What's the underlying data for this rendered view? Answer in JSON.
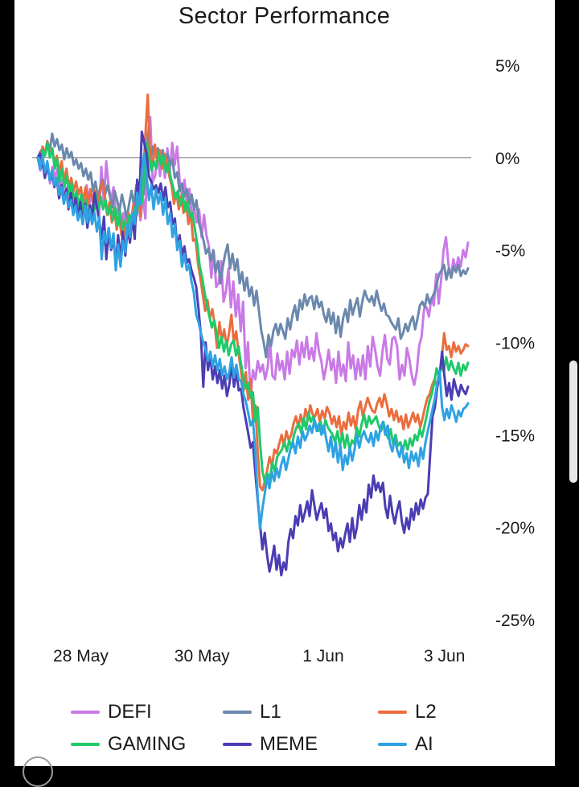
{
  "chart_data": {
    "type": "line",
    "title": "Sector Performance",
    "xlabel": "",
    "ylabel": "",
    "x_range": [
      0,
      181
    ],
    "ylim": [
      -25,
      5
    ],
    "y_ticks": [
      5,
      0,
      -5,
      -10,
      -15,
      -20,
      -25
    ],
    "y_tick_labels": [
      "5%",
      "0%",
      "-5%",
      "-10%",
      "-15%",
      "-20%",
      "-25%"
    ],
    "x_ticks": [
      {
        "label": "28 May",
        "x": 12
      },
      {
        "label": "30 May",
        "x": 63
      },
      {
        "label": "1 Jun",
        "x": 114
      },
      {
        "label": "3 Jun",
        "x": 165
      }
    ],
    "baseline": 0,
    "legend_position": "bottom",
    "series": [
      {
        "name": "DEFI",
        "color": "#c97ae6",
        "values": [
          0,
          -0.7,
          -0.2,
          -0.9,
          -0.3,
          -1.4,
          -0.5,
          -1.1,
          -0.6,
          -1.8,
          -1.2,
          -2.3,
          -1.6,
          -2.6,
          -1.9,
          -2.8,
          -2.2,
          -3.0,
          -2.4,
          -3.1,
          -1.5,
          -2.6,
          -1.9,
          -2.9,
          -2.2,
          -3.3,
          -0.5,
          -2.4,
          -0.2,
          -1.6,
          -2.3,
          -1.6,
          -3.2,
          -2.7,
          -3.8,
          -3.0,
          -3.9,
          -3.1,
          -4.1,
          -2.7,
          -3.5,
          -2.0,
          -3.4,
          -2.1,
          -3.3,
          1.3,
          2.2,
          -1.3,
          -1.0,
          0.3,
          -1.0,
          0.4,
          -1.1,
          0.5,
          -0.8,
          0.8,
          -0.4,
          0.6,
          -1.2,
          -2.1,
          -1.2,
          -2.5,
          -1.7,
          -3.2,
          -2.7,
          -3.5,
          -2.8,
          -4.3,
          -3.1,
          -4.2,
          -4.8,
          -6.5,
          -5.1,
          -7.0,
          -6.8,
          -5.6,
          -7.8,
          -7.2,
          -6.0,
          -8.1,
          -6.7,
          -8.6,
          -7.4,
          -9.4,
          -7.8,
          -11.4,
          -10.0,
          -13.0,
          -11.5,
          -12.0,
          -11.0,
          -11.6,
          -11.2,
          -12.0,
          -11.4,
          -10.0,
          -11.8,
          -12.0,
          -10.6,
          -11.5,
          -11.0,
          -12.0,
          -10.5,
          -11.7,
          -10.4,
          -10.8,
          -9.9,
          -11.2,
          -10.0,
          -10.8,
          -9.7,
          -10.9,
          -10.3,
          -11.0,
          -9.5,
          -10.5,
          -11.0,
          -12.0,
          -11.3,
          -10.4,
          -11.5,
          -10.9,
          -12.2,
          -10.5,
          -11.8,
          -11.2,
          -12.1,
          -10.0,
          -11.4,
          -10.7,
          -12.0,
          -10.9,
          -11.8,
          -10.7,
          -12.0,
          -10.2,
          -11.3,
          -9.7,
          -10.4,
          -11.3,
          -11.8,
          -10.5,
          -9.6,
          -10.9,
          -11.2,
          -9.8,
          -9.7,
          -10.2,
          -12.0,
          -11.2,
          -11.8,
          -10.3,
          -10.9,
          -11.8,
          -12.3,
          -11.6,
          -10.2,
          -9.7,
          -8.2,
          -8.1,
          -8.6,
          -7.6,
          -8.0,
          -6.3,
          -7.9,
          -6.6,
          -5.0,
          -4.3,
          -5.8,
          -6.5,
          -5.5,
          -6.1,
          -5.4,
          -5.9,
          -5.0,
          -5.4,
          -4.6
        ]
      },
      {
        "name": "L1",
        "color": "#6b88ad",
        "values": [
          0,
          0.3,
          0.5,
          0.2,
          0.8,
          0.4,
          1.3,
          0.6,
          1.0,
          0.4,
          0.7,
          -0.1,
          0.5,
          0.0,
          0.3,
          -0.4,
          -0.1,
          -0.6,
          -0.3,
          -1.0,
          -0.6,
          -1.2,
          -0.8,
          -1.8,
          -1.3,
          -2.2,
          -1.6,
          -1.2,
          -2.0,
          -1.5,
          -2.1,
          -2.7,
          -1.8,
          -2.3,
          -2.9,
          -2.0,
          -2.6,
          -3.3,
          -2.5,
          -1.8,
          -2.6,
          -1.5,
          -2.3,
          -1.2,
          -2.0,
          -0.4,
          1.3,
          0.1,
          0.6,
          0.2,
          0.5,
          -0.2,
          0.4,
          -0.3,
          0.2,
          -0.4,
          -0.1,
          -1.1,
          -0.8,
          -1.8,
          -1.4,
          -2.1,
          -1.7,
          -2.5,
          -2.0,
          -2.8,
          -2.3,
          -3.5,
          -4.0,
          -4.5,
          -5.2,
          -4.9,
          -5.6,
          -5.0,
          -6.2,
          -5.6,
          -6.8,
          -5.9,
          -5.2,
          -4.7,
          -6.0,
          -5.2,
          -6.1,
          -5.5,
          -6.8,
          -6.2,
          -7.2,
          -6.5,
          -7.5,
          -7.0,
          -8.0,
          -7.2,
          -8.3,
          -9.4,
          -10.0,
          -10.8,
          -9.6,
          -10.2,
          -9.4,
          -9.0,
          -9.6,
          -9.0,
          -9.4,
          -9.8,
          -8.7,
          -9.3,
          -8.5,
          -8.0,
          -8.8,
          -7.7,
          -8.2,
          -7.4,
          -8.0,
          -7.6,
          -7.5,
          -8.2,
          -7.5,
          -8.1,
          -7.8,
          -8.5,
          -8.9,
          -8.2,
          -9.0,
          -8.4,
          -9.5,
          -8.6,
          -9.7,
          -8.7,
          -8.2,
          -8.9,
          -7.7,
          -8.5,
          -8.0,
          -7.6,
          -8.6,
          -7.8,
          -7.2,
          -7.6,
          -7.8,
          -7.5,
          -8.0,
          -7.2,
          -7.8,
          -8.3,
          -7.9,
          -8.5,
          -8.6,
          -8.9,
          -9.1,
          -9.3,
          -8.7,
          -9.8,
          -9.5,
          -9.0,
          -9.4,
          -8.9,
          -8.6,
          -9.3,
          -8.7,
          -8.0,
          -7.8,
          -8.1,
          -7.4,
          -7.9,
          -7.6,
          -7.3,
          -6.8,
          -6.3,
          -6.1,
          -5.8,
          -6.6,
          -6.0,
          -6.5,
          -5.9,
          -6.2,
          -5.8,
          -6.4,
          -6.1,
          -6.3,
          -6.0
        ]
      },
      {
        "name": "L2",
        "color": "#eb6d3e",
        "values": [
          0,
          -0.3,
          0.6,
          0.2,
          0.9,
          0.3,
          0.5,
          -0.3,
          0.1,
          -0.8,
          -0.2,
          -1.3,
          -0.6,
          -1.6,
          -1.1,
          -1.8,
          -1.3,
          -2.0,
          -1.6,
          -2.4,
          -1.6,
          -2.5,
          -1.7,
          -2.4,
          -1.8,
          -2.7,
          -1.9,
          -1.3,
          -2.0,
          -3.1,
          -2.4,
          -3.5,
          -2.7,
          -3.9,
          -3.1,
          -4.2,
          -3.5,
          -4.3,
          -3.0,
          -3.6,
          -2.5,
          -3.4,
          -1.8,
          -3.2,
          -1.1,
          1.2,
          3.4,
          0.2,
          -0.5,
          0.7,
          -0.3,
          0.4,
          -0.6,
          0.2,
          -0.3,
          -1.0,
          -1.5,
          -2.5,
          -1.9,
          -2.8,
          -2.1,
          -3.0,
          -2.4,
          -3.6,
          -3.0,
          -4.5,
          -4.4,
          -5.7,
          -6.5,
          -7.4,
          -8.3,
          -7.7,
          -8.7,
          -8.2,
          -9.0,
          -10.3,
          -8.9,
          -9.9,
          -9.3,
          -10.2,
          -9.5,
          -8.5,
          -10.0,
          -9.4,
          -10.6,
          -11.5,
          -12.7,
          -11.6,
          -13.1,
          -12.0,
          -14.2,
          -13.4,
          -15.8,
          -17.8,
          -18.0,
          -17.5,
          -16.9,
          -16.2,
          -16.7,
          -15.8,
          -16.0,
          -15.5,
          -15.0,
          -15.6,
          -14.8,
          -15.3,
          -15.0,
          -14.4,
          -14.0,
          -14.6,
          -13.9,
          -14.5,
          -13.6,
          -14.2,
          -13.4,
          -13.9,
          -14.0,
          -13.6,
          -14.3,
          -13.7,
          -14.1,
          -13.5,
          -13.8,
          -14.4,
          -14.0,
          -14.6,
          -14.0,
          -15.0,
          -14.3,
          -14.7,
          -13.8,
          -14.5,
          -14.0,
          -14.7,
          -13.7,
          -13.2,
          -14.0,
          -13.5,
          -13.0,
          -13.4,
          -13.7,
          -13.8,
          -13.3,
          -13.0,
          -13.5,
          -12.8,
          -13.3,
          -14.0,
          -13.6,
          -14.2,
          -13.7,
          -14.3,
          -14.0,
          -14.7,
          -13.9,
          -14.6,
          -14.2,
          -13.8,
          -14.3,
          -13.9,
          -14.6,
          -14.1,
          -13.5,
          -13.0,
          -12.8,
          -12.3,
          -12.0,
          -12.4,
          -11.8,
          -10.9,
          -9.5,
          -10.4,
          -10.2,
          -10.8,
          -10.0,
          -10.5,
          -10.2,
          -10.6,
          -10.4,
          -10.1,
          -10.2
        ]
      },
      {
        "name": "GAMING",
        "color": "#20c96a",
        "values": [
          0,
          -0.5,
          0.4,
          0.1,
          0.8,
          0.0,
          0.5,
          -0.6,
          -0.1,
          -1.3,
          -0.6,
          -1.6,
          -1.0,
          -2.0,
          -1.4,
          -2.3,
          -1.8,
          -2.6,
          -2.0,
          -3.1,
          -2.3,
          -3.5,
          -2.6,
          -3.3,
          -2.0,
          -2.9,
          -2.1,
          -2.8,
          -2.3,
          -3.1,
          -2.6,
          -3.4,
          -2.7,
          -3.7,
          -2.9,
          -3.9,
          -3.4,
          -3.9,
          -3.1,
          -3.8,
          -2.7,
          -3.1,
          -1.6,
          -2.5,
          -1.0,
          0.8,
          0.0,
          -0.7,
          -0.2,
          -0.6,
          0.3,
          -0.4,
          0.1,
          -0.8,
          -0.3,
          -1.1,
          -1.6,
          -2.2,
          -1.8,
          -2.6,
          -2.0,
          -2.9,
          -2.4,
          -3.2,
          -3.0,
          -3.9,
          -4.7,
          -5.9,
          -6.5,
          -7.3,
          -8.0,
          -8.6,
          -9.2,
          -8.8,
          -9.5,
          -10.3,
          -9.7,
          -10.5,
          -9.9,
          -10.7,
          -10.1,
          -9.9,
          -10.7,
          -10.2,
          -11.1,
          -11.9,
          -12.5,
          -12.2,
          -13.0,
          -12.7,
          -14.3,
          -13.5,
          -15.5,
          -17.0,
          -17.6,
          -17.1,
          -17.4,
          -16.5,
          -17.0,
          -16.2,
          -16.0,
          -15.8,
          -15.4,
          -15.9,
          -15.3,
          -15.7,
          -15.0,
          -14.6,
          -14.4,
          -14.9,
          -14.1,
          -14.7,
          -13.8,
          -14.3,
          -14.0,
          -14.4,
          -14.8,
          -14.3,
          -14.9,
          -14.2,
          -14.6,
          -14.8,
          -15.0,
          -15.4,
          -14.8,
          -15.6,
          -14.9,
          -15.7,
          -15.0,
          -15.8,
          -15.3,
          -15.5,
          -14.6,
          -15.1,
          -14.4,
          -13.9,
          -14.6,
          -14.0,
          -14.4,
          -14.2,
          -14.0,
          -14.5,
          -14.8,
          -14.3,
          -14.9,
          -15.2,
          -14.7,
          -15.5,
          -15.0,
          -15.6,
          -15.4,
          -15.9,
          -15.3,
          -15.8,
          -15.2,
          -15.6,
          -15.0,
          -15.3,
          -14.7,
          -15.1,
          -14.5,
          -13.9,
          -13.2,
          -12.8,
          -12.2,
          -11.4,
          -11.9,
          -11.2,
          -11.6,
          -10.8,
          -11.5,
          -11.0,
          -11.4,
          -11.7,
          -11.1,
          -11.8,
          -11.2,
          -11.5,
          -11.1
        ]
      },
      {
        "name": "MEME",
        "color": "#4b3db3",
        "values": [
          0,
          0.2,
          -0.3,
          -1.1,
          -0.4,
          -1.2,
          -0.9,
          -1.6,
          -1.1,
          -2.2,
          -1.5,
          -2.4,
          -1.7,
          -2.8,
          -1.9,
          -3.1,
          -2.2,
          -3.3,
          -2.4,
          -3.6,
          -2.5,
          -3.8,
          -2.6,
          -3.3,
          -1.9,
          -2.7,
          -3.4,
          -4.4,
          -3.2,
          -5.5,
          -4.0,
          -5.0,
          -4.4,
          -5.8,
          -4.2,
          -5.5,
          -4.0,
          -5.3,
          -3.8,
          -4.6,
          -3.2,
          -4.4,
          -1.2,
          -2.1,
          1.4,
          0.8,
          0.2,
          -1.0,
          -1.3,
          -1.7,
          -1.5,
          -1.9,
          -1.4,
          -2.3,
          -1.6,
          -2.7,
          -2.4,
          -3.6,
          -3.3,
          -4.8,
          -4.2,
          -5.3,
          -4.8,
          -5.7,
          -5.5,
          -6.1,
          -6.5,
          -7.0,
          -8.2,
          -9.6,
          -12.4,
          -10.0,
          -11.5,
          -10.8,
          -12.0,
          -11.3,
          -12.2,
          -11.5,
          -12.5,
          -11.8,
          -12.9,
          -12.3,
          -11.2,
          -12.4,
          -11.6,
          -12.6,
          -12.5,
          -13.5,
          -14.2,
          -14.9,
          -15.7,
          -15.4,
          -17.0,
          -18.5,
          -19.8,
          -21.2,
          -20.3,
          -21.5,
          -22.4,
          -21.8,
          -21.0,
          -22.3,
          -21.5,
          -22.6,
          -21.9,
          -22.3,
          -20.8,
          -20.1,
          -20.6,
          -19.4,
          -19.9,
          -18.8,
          -19.7,
          -19.2,
          -18.6,
          -19.4,
          -18.0,
          -18.8,
          -19.6,
          -19.1,
          -18.7,
          -19.5,
          -19.0,
          -20.2,
          -19.8,
          -20.7,
          -20.3,
          -21.3,
          -20.6,
          -21.1,
          -20.4,
          -19.8,
          -20.8,
          -19.5,
          -20.6,
          -20.0,
          -18.8,
          -19.6,
          -18.5,
          -19.2,
          -17.7,
          -18.4,
          -17.2,
          -18.0,
          -17.6,
          -18.1,
          -17.6,
          -18.9,
          -19.5,
          -18.3,
          -19.2,
          -19.8,
          -19.1,
          -18.6,
          -19.7,
          -20.3,
          -19.5,
          -20.1,
          -19.0,
          -19.6,
          -18.7,
          -19.3,
          -18.5,
          -19.0,
          -18.4,
          -18.2,
          -16.0,
          -14.0,
          -13.5,
          -12.4,
          -11.8,
          -10.5,
          -11.8,
          -12.9,
          -12.2,
          -13.1,
          -12.0,
          -12.5,
          -12.9,
          -12.3,
          -12.6,
          -12.8,
          -12.4
        ]
      },
      {
        "name": "AI",
        "color": "#2fa2e3",
        "values": [
          0,
          -0.6,
          0.1,
          -0.8,
          -0.2,
          -1.2,
          -0.7,
          -1.5,
          -1.1,
          -2.0,
          -1.6,
          -2.5,
          -1.9,
          -2.7,
          -2.3,
          -3.1,
          -2.6,
          -3.4,
          -2.9,
          -3.6,
          -2.6,
          -3.5,
          -2.8,
          -3.6,
          -3.0,
          -4.0,
          -3.2,
          -5.5,
          -4.0,
          -4.6,
          -3.8,
          -4.9,
          -4.1,
          -6.1,
          -4.7,
          -5.9,
          -4.5,
          -5.1,
          -3.6,
          -4.3,
          -3.0,
          -3.6,
          -1.9,
          -2.6,
          -0.8,
          0.2,
          -0.9,
          -2.3,
          -1.5,
          -2.8,
          -1.7,
          -2.5,
          -1.9,
          -3.1,
          -2.2,
          -3.6,
          -3.0,
          -4.3,
          -3.6,
          -5.0,
          -4.5,
          -5.9,
          -5.2,
          -6.1,
          -5.8,
          -6.7,
          -7.3,
          -8.5,
          -8.9,
          -9.5,
          -10.0,
          -10.4,
          -11.0,
          -10.5,
          -11.3,
          -10.7,
          -11.5,
          -10.9,
          -11.8,
          -11.3,
          -12.0,
          -11.6,
          -10.8,
          -11.9,
          -11.2,
          -12.0,
          -12.1,
          -12.8,
          -13.2,
          -13.8,
          -14.5,
          -14.2,
          -15.8,
          -18.3,
          -20.1,
          -19.0,
          -18.2,
          -17.3,
          -17.9,
          -17.0,
          -17.5,
          -16.8,
          -17.3,
          -16.6,
          -16.2,
          -16.9,
          -16.3,
          -15.7,
          -15.4,
          -16.0,
          -15.1,
          -15.7,
          -14.8,
          -15.3,
          -15.0,
          -14.5,
          -14.9,
          -14.2,
          -14.8,
          -14.4,
          -15.0,
          -14.5,
          -15.2,
          -15.9,
          -15.1,
          -16.2,
          -15.4,
          -16.5,
          -15.6,
          -16.9,
          -16.1,
          -16.6,
          -15.7,
          -16.4,
          -15.8,
          -15.0,
          -15.7,
          -15.1,
          -14.8,
          -15.2,
          -15.4,
          -14.9,
          -15.6,
          -14.8,
          -15.3,
          -14.6,
          -14.3,
          -15.0,
          -14.5,
          -15.5,
          -15.9,
          -15.2,
          -15.8,
          -16.2,
          -15.6,
          -16.5,
          -16.0,
          -16.8,
          -15.9,
          -16.4,
          -16.0,
          -16.7,
          -15.7,
          -16.3,
          -15.4,
          -14.8,
          -14.2,
          -13.6,
          -13.0,
          -12.2,
          -11.5,
          -13.5,
          -14.2,
          -13.6,
          -14.1,
          -13.4,
          -13.8,
          -14.3,
          -13.7,
          -14.0,
          -13.6,
          -13.5,
          -13.3
        ]
      }
    ]
  }
}
